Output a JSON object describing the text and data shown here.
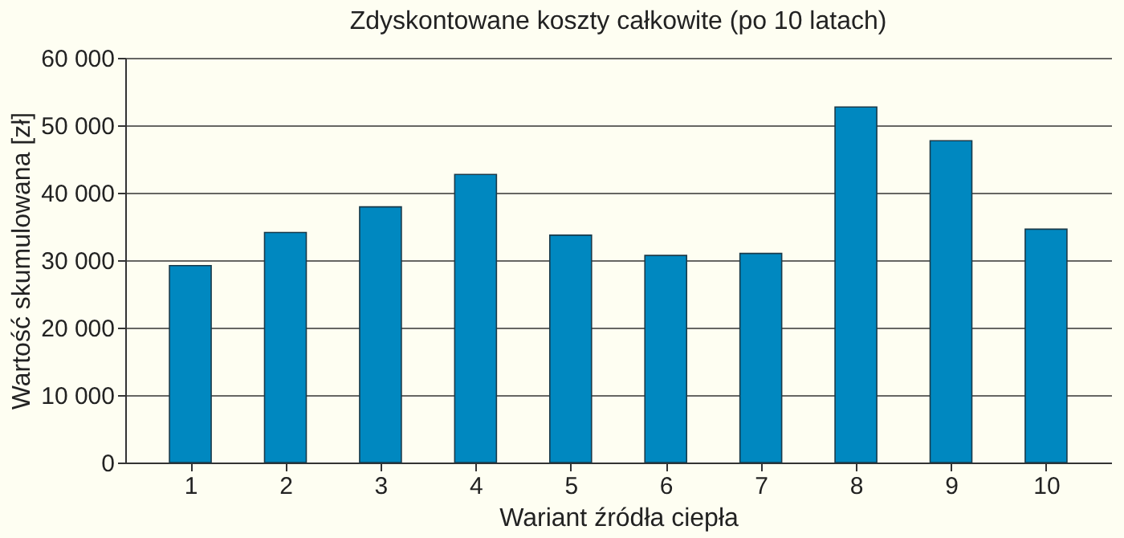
{
  "chart_data": {
    "type": "bar",
    "title": "Zdyskontowane koszty całkowite (po 10 latach)",
    "xlabel": "Wariant źródła ciepła",
    "ylabel": "Wartość skumulowana [zł]",
    "categories": [
      "1",
      "2",
      "3",
      "4",
      "5",
      "6",
      "7",
      "8",
      "9",
      "10"
    ],
    "values": [
      29200,
      34100,
      37900,
      42700,
      33700,
      30700,
      31000,
      52700,
      47700,
      34600
    ],
    "color": "#0088c0",
    "ylim": [
      0,
      60000
    ],
    "yticks": [
      {
        "value": 0,
        "label": "0"
      },
      {
        "value": 10000,
        "label": "10 000"
      },
      {
        "value": 20000,
        "label": "20 000"
      },
      {
        "value": 30000,
        "label": "30 000"
      },
      {
        "value": 40000,
        "label": "40 000"
      },
      {
        "value": 50000,
        "label": "50 000"
      },
      {
        "value": 60000,
        "label": "60 000"
      }
    ],
    "grid": "y"
  }
}
